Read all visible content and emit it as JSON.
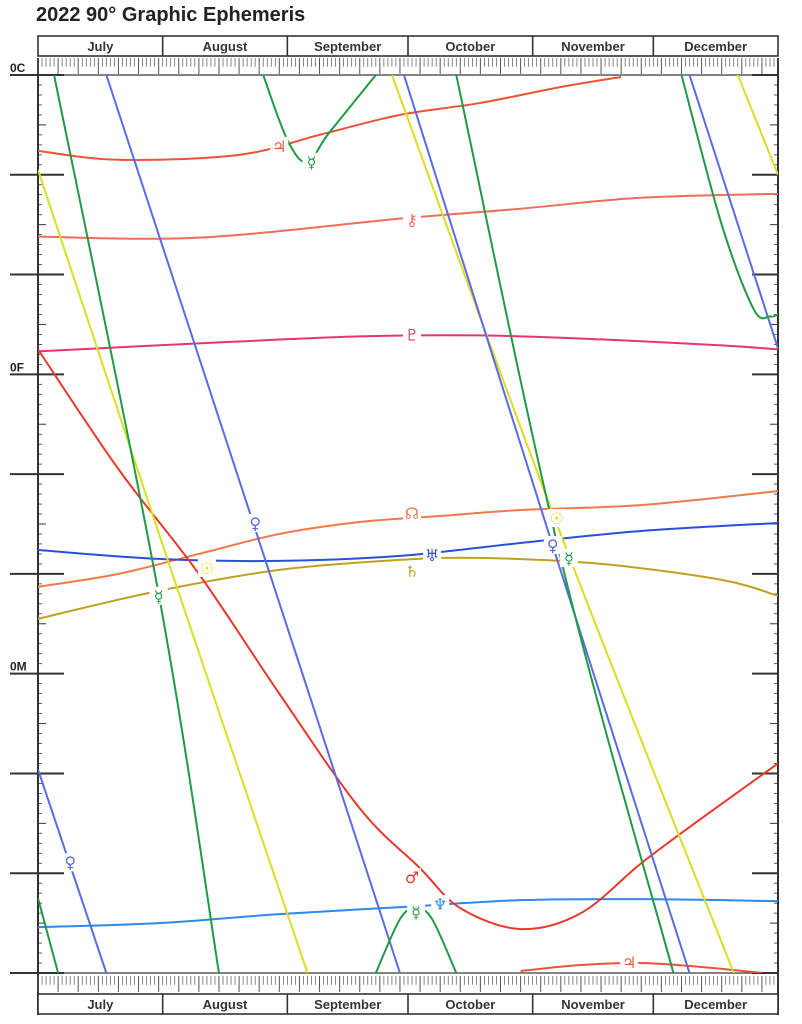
{
  "chart_data": {
    "type": "line",
    "title": "2022 90° Graphic Ephemeris",
    "months": [
      "July",
      "August",
      "September",
      "October",
      "November",
      "December"
    ],
    "y_axis_labels": [
      {
        "label": "0C",
        "value": 0
      },
      {
        "label": "0F",
        "value": 30
      },
      {
        "label": "0M",
        "value": 60
      }
    ],
    "ylim": [
      0,
      90
    ],
    "xlim": [
      0,
      184
    ],
    "grid": false,
    "series": [
      {
        "name": "jupiter",
        "glyph": "♃",
        "color": "#e8553a",
        "points": [
          [
            0,
            7.6
          ],
          [
            20,
            8.5
          ],
          [
            50,
            8.0
          ],
          [
            70,
            6.0
          ],
          [
            90,
            4.0
          ],
          [
            110,
            2.8
          ],
          [
            130,
            1.2
          ],
          [
            145,
            0.2
          ]
        ],
        "labels": [
          [
            60,
            7.2
          ]
        ]
      },
      {
        "name": "jupiter-late",
        "glyph": "♃",
        "color": "#e8553a",
        "points": [
          [
            120,
            89.8
          ],
          [
            135,
            89.2
          ],
          [
            150,
            89.0
          ],
          [
            165,
            89.4
          ],
          [
            180,
            90.0
          ]
        ],
        "labels": [
          [
            147,
            89.0
          ]
        ]
      },
      {
        "name": "chiron",
        "glyph": "⚷",
        "color": "#ee6e5a",
        "points": [
          [
            0,
            16.2
          ],
          [
            40,
            16.3
          ],
          [
            90,
            14.4
          ],
          [
            120,
            13.4
          ],
          [
            150,
            12.3
          ],
          [
            184,
            11.9
          ]
        ],
        "labels": [
          [
            93,
            14.6
          ]
        ]
      },
      {
        "name": "pluto",
        "glyph": "♇",
        "color": "#e8356a",
        "points": [
          [
            0,
            27.7
          ],
          [
            40,
            26.9
          ],
          [
            80,
            26.2
          ],
          [
            110,
            26.1
          ],
          [
            140,
            26.5
          ],
          [
            170,
            27.1
          ],
          [
            184,
            27.5
          ]
        ],
        "labels": [
          [
            93,
            26.1
          ]
        ]
      },
      {
        "name": "node",
        "glyph": "☊",
        "color": "#f07a4a",
        "points": [
          [
            0,
            51.3
          ],
          [
            20,
            50.0
          ],
          [
            40,
            48.0
          ],
          [
            60,
            46.0
          ],
          [
            80,
            44.8
          ],
          [
            100,
            44.2
          ],
          [
            120,
            43.6
          ],
          [
            150,
            43.1
          ],
          [
            184,
            41.7
          ]
        ],
        "labels": [
          [
            93,
            44.0
          ]
        ]
      },
      {
        "name": "uranus",
        "glyph": "♅",
        "color": "#2a4fd8",
        "points": [
          [
            0,
            47.6
          ],
          [
            30,
            48.5
          ],
          [
            60,
            48.7
          ],
          [
            90,
            48.2
          ],
          [
            120,
            46.9
          ],
          [
            150,
            45.7
          ],
          [
            184,
            44.9
          ]
        ],
        "labels": [
          [
            98,
            48.2
          ]
        ]
      },
      {
        "name": "saturn",
        "glyph": "♄",
        "color": "#c0a020",
        "points": [
          [
            0,
            54.5
          ],
          [
            30,
            51.7
          ],
          [
            60,
            49.6
          ],
          [
            90,
            48.6
          ],
          [
            110,
            48.4
          ],
          [
            140,
            49.0
          ],
          [
            170,
            50.6
          ],
          [
            184,
            52.2
          ]
        ],
        "labels": [
          [
            93,
            49.8
          ]
        ]
      },
      {
        "name": "neptune",
        "glyph": "♆",
        "color": "#2a8be8",
        "points": [
          [
            0,
            85.4
          ],
          [
            30,
            85.0
          ],
          [
            60,
            84.1
          ],
          [
            90,
            83.4
          ],
          [
            120,
            82.7
          ],
          [
            150,
            82.6
          ],
          [
            184,
            82.8
          ]
        ],
        "labels": [
          [
            100,
            83.2
          ]
        ]
      },
      {
        "name": "mars",
        "glyph": "♂",
        "color": "#e83a2a",
        "points": [
          [
            0,
            27.5
          ],
          [
            20,
            39.5
          ],
          [
            40,
            50.0
          ],
          [
            60,
            62.0
          ],
          [
            80,
            73.5
          ],
          [
            95,
            79.5
          ],
          [
            105,
            83.5
          ],
          [
            120,
            85.6
          ],
          [
            135,
            84.0
          ],
          [
            150,
            79.0
          ],
          [
            165,
            74.5
          ],
          [
            184,
            69.0
          ]
        ],
        "labels": [
          [
            93,
            80.5
          ]
        ]
      },
      {
        "name": "sun-1",
        "glyph": "☉",
        "color": "#dddd22",
        "points": [
          [
            0,
            9.5
          ],
          [
            33,
            49.5
          ],
          [
            67,
            90
          ]
        ],
        "labels": [
          [
            42,
            49.5
          ]
        ]
      },
      {
        "name": "sun-2",
        "glyph": "☉",
        "color": "#dddd22",
        "points": [
          [
            88,
            0
          ],
          [
            129,
            45
          ],
          [
            173,
            90
          ]
        ],
        "labels": [
          [
            129,
            44.5
          ]
        ]
      },
      {
        "name": "sun-3",
        "glyph": "☉",
        "color": "#dddd22",
        "points": [
          [
            174,
            0
          ],
          [
            184,
            10
          ]
        ],
        "labels": []
      },
      {
        "name": "venus-1",
        "glyph": "♀",
        "color": "#5a6ae8",
        "points": [
          [
            0,
            69.6
          ],
          [
            17,
            90
          ]
        ],
        "labels": [
          [
            8,
            79.0
          ]
        ]
      },
      {
        "name": "venus-2",
        "glyph": "♀",
        "color": "#5a6ae8",
        "points": [
          [
            17,
            0
          ],
          [
            54,
            45.5
          ],
          [
            90,
            90
          ]
        ],
        "labels": [
          [
            54,
            45.0
          ]
        ]
      },
      {
        "name": "venus-3",
        "glyph": "♀",
        "color": "#5a6ae8",
        "points": [
          [
            91,
            0
          ],
          [
            128,
            47.2
          ],
          [
            162,
            90
          ]
        ],
        "labels": [
          [
            128,
            47.2
          ]
        ]
      },
      {
        "name": "venus-4",
        "glyph": "♀",
        "color": "#5a6ae8",
        "points": [
          [
            162,
            0
          ],
          [
            184,
            27.4
          ]
        ],
        "labels": []
      },
      {
        "name": "mercury-1",
        "glyph": "☿",
        "color": "#1f9a45",
        "points": [
          [
            0,
            82.5
          ],
          [
            5,
            90
          ]
        ],
        "labels": []
      },
      {
        "name": "mercury-2",
        "glyph": "☿",
        "color": "#1f9a45",
        "points": [
          [
            4,
            0
          ],
          [
            30,
            52.0
          ],
          [
            45,
            90
          ]
        ],
        "labels": [
          [
            30,
            52.3
          ]
        ]
      },
      {
        "name": "mercury-3",
        "glyph": "☿",
        "color": "#1f9a45",
        "points": [
          [
            56,
            0
          ],
          [
            62,
            6.5
          ],
          [
            67,
            8.8
          ],
          [
            72,
            6.0
          ],
          [
            84,
            0
          ]
        ],
        "labels": [
          [
            68,
            8.8
          ]
        ]
      },
      {
        "name": "mercury-4",
        "glyph": "☿",
        "color": "#1f9a45",
        "points": [
          [
            84,
            90
          ],
          [
            90,
            84.6
          ],
          [
            94,
            83.5
          ],
          [
            98,
            84.6
          ],
          [
            104,
            90
          ]
        ],
        "labels": [
          [
            94,
            84.0
          ]
        ]
      },
      {
        "name": "mercury-5",
        "glyph": "☿",
        "color": "#1f9a45",
        "points": [
          [
            104,
            0
          ],
          [
            130,
            48.5
          ],
          [
            158,
            90
          ]
        ],
        "labels": [
          [
            132,
            48.5
          ]
        ]
      },
      {
        "name": "mercury-6",
        "glyph": "☿",
        "color": "#1f9a45",
        "points": [
          [
            160,
            0
          ],
          [
            170,
            15.0
          ],
          [
            178,
            23.5
          ],
          [
            182,
            24.2
          ],
          [
            184,
            24.0
          ]
        ],
        "labels": []
      }
    ]
  }
}
